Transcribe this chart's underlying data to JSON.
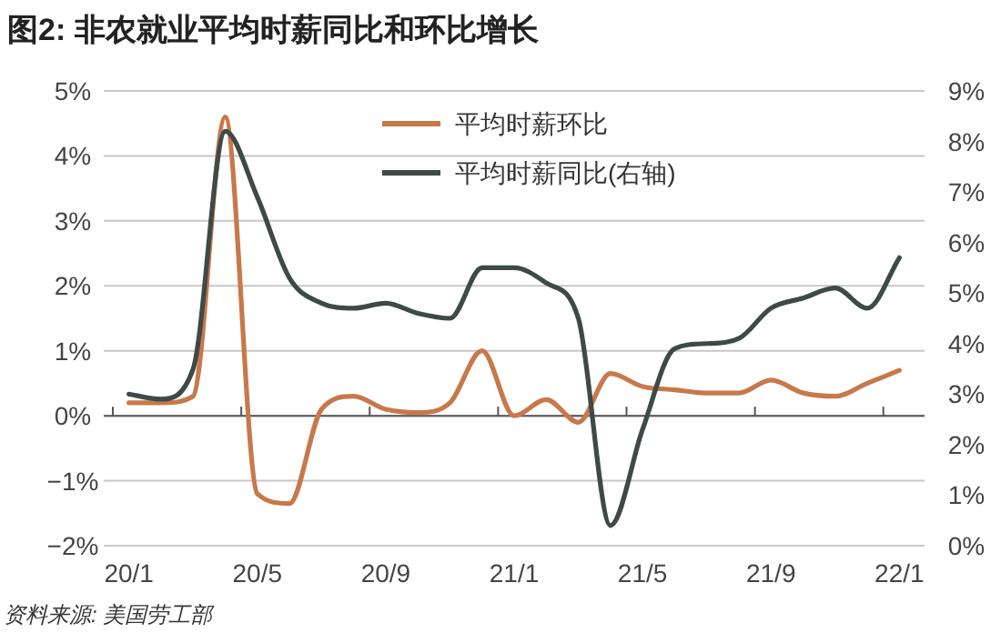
{
  "chart_data": {
    "type": "line",
    "title": "图2: 非农就业平均时薪同比和环比增长",
    "annotations": [
      "资料来源: 美国劳工部"
    ],
    "categories": [
      "20/1",
      null,
      null,
      null,
      "20/5",
      null,
      null,
      null,
      "20/9",
      null,
      null,
      null,
      "21/1",
      null,
      null,
      null,
      "21/5",
      null,
      null,
      null,
      "21/9",
      null,
      null,
      null,
      "22/1"
    ],
    "series": [
      {
        "name": "平均时薪环比",
        "color": "#c8784a",
        "values": [
          0.2,
          0.2,
          0.3,
          4.6,
          -1.2,
          -1.35,
          0.1,
          0.3,
          0.1,
          0.05,
          0.2,
          1.0,
          0.0,
          0.25,
          -0.1,
          0.65,
          0.45,
          0.4,
          0.35,
          0.35,
          0.55,
          0.35,
          0.3,
          0.5,
          0.7
        ]
      },
      {
        "name": "平均时薪同比(右轴)",
        "color": "#3d4a47",
        "axis": "y2",
        "values": [
          3.0,
          2.9,
          3.5,
          8.2,
          6.9,
          5.3,
          4.8,
          4.7,
          4.8,
          4.6,
          4.5,
          5.5,
          5.5,
          5.2,
          4.5,
          0.4,
          2.3,
          3.9,
          4.0,
          4.1,
          4.7,
          4.9,
          5.1,
          4.7,
          5.7
        ]
      }
    ],
    "ylim": [
      -2,
      5
    ],
    "yticks": [
      {
        "value": -2,
        "label": "−2%"
      },
      {
        "value": -1,
        "label": "−1%"
      },
      {
        "value": 0,
        "label": "0%"
      },
      {
        "value": 1,
        "label": "1%"
      },
      {
        "value": 2,
        "label": "2%"
      },
      {
        "value": 3,
        "label": "3%"
      },
      {
        "value": 4,
        "label": "4%"
      },
      {
        "value": 5,
        "label": "5%"
      }
    ],
    "y2lim": [
      0,
      9
    ],
    "y2ticks": [
      {
        "value": 0,
        "label": "0%"
      },
      {
        "value": 1,
        "label": "1%"
      },
      {
        "value": 2,
        "label": "2%"
      },
      {
        "value": 3,
        "label": "3%"
      },
      {
        "value": 4,
        "label": "4%"
      },
      {
        "value": 5,
        "label": "5%"
      },
      {
        "value": 6,
        "label": "6%"
      },
      {
        "value": 7,
        "label": "7%"
      },
      {
        "value": 8,
        "label": "8%"
      },
      {
        "value": 9,
        "label": "9%"
      }
    ],
    "grid": "y",
    "legend": "top",
    "marker": "none",
    "line_style": "solid"
  }
}
